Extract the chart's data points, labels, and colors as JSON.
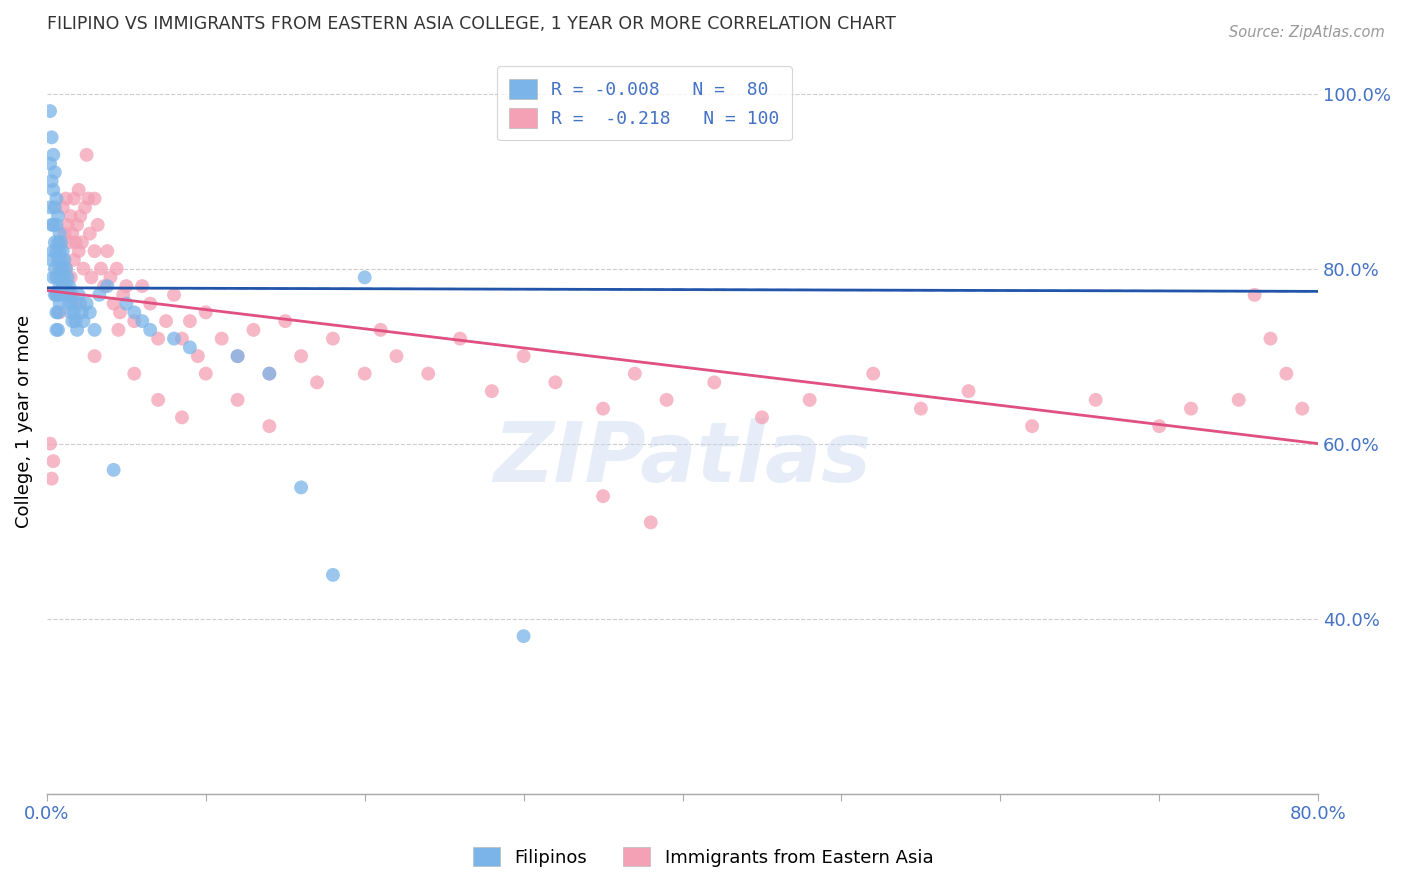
{
  "title": "FILIPINO VS IMMIGRANTS FROM EASTERN ASIA COLLEGE, 1 YEAR OR MORE CORRELATION CHART",
  "source": "Source: ZipAtlas.com",
  "ylabel": "College, 1 year or more",
  "xlim": [
    0.0,
    0.8
  ],
  "ylim": [
    0.2,
    1.05
  ],
  "ytick_labels_right": [
    "40.0%",
    "60.0%",
    "80.0%",
    "100.0%"
  ],
  "ytick_vals_right": [
    0.4,
    0.6,
    0.8,
    1.0
  ],
  "legend_blue_R": -0.008,
  "legend_blue_N": 80,
  "legend_pink_R": -0.218,
  "legend_pink_N": 100,
  "blue_color": "#7ab4e8",
  "pink_color": "#f4a0b5",
  "blue_line_color": "#2255aa",
  "pink_line_color": "#e05080",
  "background_color": "#ffffff",
  "grid_color": "#cccccc",
  "title_color": "#333333",
  "axis_label_color": "#4472c4",
  "watermark": "ZIPatlas",
  "blue_line_y0": 0.778,
  "blue_line_y1": 0.774,
  "pink_line_y0": 0.775,
  "pink_line_y1": 0.6,
  "blue_scatter_x": [
    0.002,
    0.002,
    0.002,
    0.003,
    0.003,
    0.003,
    0.003,
    0.004,
    0.004,
    0.004,
    0.004,
    0.004,
    0.005,
    0.005,
    0.005,
    0.005,
    0.005,
    0.006,
    0.006,
    0.006,
    0.006,
    0.006,
    0.006,
    0.006,
    0.007,
    0.007,
    0.007,
    0.007,
    0.007,
    0.007,
    0.007,
    0.008,
    0.008,
    0.008,
    0.008,
    0.008,
    0.009,
    0.009,
    0.009,
    0.009,
    0.01,
    0.01,
    0.01,
    0.011,
    0.011,
    0.012,
    0.012,
    0.013,
    0.013,
    0.014,
    0.014,
    0.015,
    0.015,
    0.016,
    0.016,
    0.017,
    0.018,
    0.019,
    0.02,
    0.021,
    0.022,
    0.023,
    0.025,
    0.027,
    0.03,
    0.033,
    0.038,
    0.042,
    0.05,
    0.055,
    0.06,
    0.065,
    0.08,
    0.09,
    0.12,
    0.14,
    0.16,
    0.18,
    0.2,
    0.3
  ],
  "blue_scatter_y": [
    0.98,
    0.92,
    0.87,
    0.95,
    0.9,
    0.85,
    0.81,
    0.93,
    0.89,
    0.85,
    0.82,
    0.79,
    0.91,
    0.87,
    0.83,
    0.8,
    0.77,
    0.88,
    0.85,
    0.82,
    0.79,
    0.77,
    0.75,
    0.73,
    0.86,
    0.83,
    0.81,
    0.79,
    0.77,
    0.75,
    0.73,
    0.84,
    0.82,
    0.8,
    0.78,
    0.76,
    0.83,
    0.81,
    0.79,
    0.77,
    0.82,
    0.8,
    0.78,
    0.81,
    0.79,
    0.8,
    0.78,
    0.79,
    0.77,
    0.78,
    0.76,
    0.77,
    0.75,
    0.76,
    0.74,
    0.75,
    0.74,
    0.73,
    0.77,
    0.76,
    0.75,
    0.74,
    0.76,
    0.75,
    0.73,
    0.77,
    0.78,
    0.57,
    0.76,
    0.75,
    0.74,
    0.73,
    0.72,
    0.71,
    0.7,
    0.68,
    0.55,
    0.45,
    0.79,
    0.38
  ],
  "pink_scatter_x": [
    0.002,
    0.003,
    0.004,
    0.006,
    0.008,
    0.008,
    0.009,
    0.01,
    0.01,
    0.011,
    0.012,
    0.012,
    0.013,
    0.013,
    0.014,
    0.015,
    0.015,
    0.016,
    0.016,
    0.017,
    0.017,
    0.018,
    0.018,
    0.019,
    0.02,
    0.02,
    0.021,
    0.022,
    0.023,
    0.024,
    0.025,
    0.026,
    0.027,
    0.028,
    0.03,
    0.03,
    0.032,
    0.034,
    0.036,
    0.038,
    0.04,
    0.042,
    0.044,
    0.046,
    0.048,
    0.05,
    0.055,
    0.06,
    0.065,
    0.07,
    0.075,
    0.08,
    0.085,
    0.09,
    0.095,
    0.1,
    0.11,
    0.12,
    0.13,
    0.14,
    0.15,
    0.16,
    0.17,
    0.18,
    0.2,
    0.21,
    0.22,
    0.24,
    0.26,
    0.28,
    0.3,
    0.32,
    0.35,
    0.37,
    0.39,
    0.42,
    0.45,
    0.48,
    0.52,
    0.55,
    0.58,
    0.62,
    0.66,
    0.7,
    0.72,
    0.75,
    0.76,
    0.77,
    0.78,
    0.79,
    0.03,
    0.045,
    0.055,
    0.07,
    0.085,
    0.1,
    0.12,
    0.14,
    0.35,
    0.38
  ],
  "pink_scatter_y": [
    0.6,
    0.56,
    0.58,
    0.77,
    0.83,
    0.75,
    0.8,
    0.87,
    0.78,
    0.84,
    0.88,
    0.8,
    0.85,
    0.77,
    0.83,
    0.86,
    0.79,
    0.84,
    0.77,
    0.88,
    0.81,
    0.83,
    0.76,
    0.85,
    0.89,
    0.82,
    0.86,
    0.83,
    0.8,
    0.87,
    0.93,
    0.88,
    0.84,
    0.79,
    0.82,
    0.88,
    0.85,
    0.8,
    0.78,
    0.82,
    0.79,
    0.76,
    0.8,
    0.75,
    0.77,
    0.78,
    0.74,
    0.78,
    0.76,
    0.72,
    0.74,
    0.77,
    0.72,
    0.74,
    0.7,
    0.75,
    0.72,
    0.7,
    0.73,
    0.68,
    0.74,
    0.7,
    0.67,
    0.72,
    0.68,
    0.73,
    0.7,
    0.68,
    0.72,
    0.66,
    0.7,
    0.67,
    0.64,
    0.68,
    0.65,
    0.67,
    0.63,
    0.65,
    0.68,
    0.64,
    0.66,
    0.62,
    0.65,
    0.62,
    0.64,
    0.65,
    0.77,
    0.72,
    0.68,
    0.64,
    0.7,
    0.73,
    0.68,
    0.65,
    0.63,
    0.68,
    0.65,
    0.62,
    0.54,
    0.51
  ]
}
